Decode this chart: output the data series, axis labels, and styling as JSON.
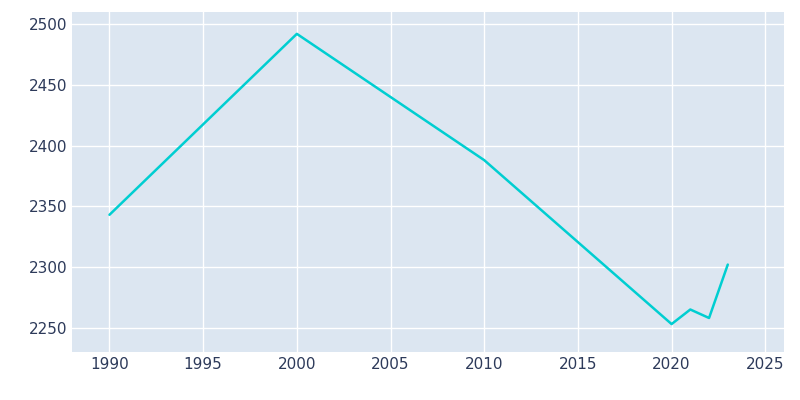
{
  "years": [
    1990,
    2000,
    2010,
    2020,
    2021,
    2022,
    2023
  ],
  "population": [
    2343,
    2492,
    2388,
    2253,
    2265,
    2258,
    2302
  ],
  "line_color": "#00CED1",
  "plot_bg_color": "#dce6f1",
  "fig_bg_color": "#ffffff",
  "grid_color": "#ffffff",
  "tick_color": "#2d3a5a",
  "xlim": [
    1988,
    2026
  ],
  "ylim": [
    2230,
    2510
  ],
  "xticks": [
    1990,
    1995,
    2000,
    2005,
    2010,
    2015,
    2020,
    2025
  ],
  "yticks": [
    2250,
    2300,
    2350,
    2400,
    2450,
    2500
  ],
  "line_width": 1.8,
  "tick_labelsize": 11
}
